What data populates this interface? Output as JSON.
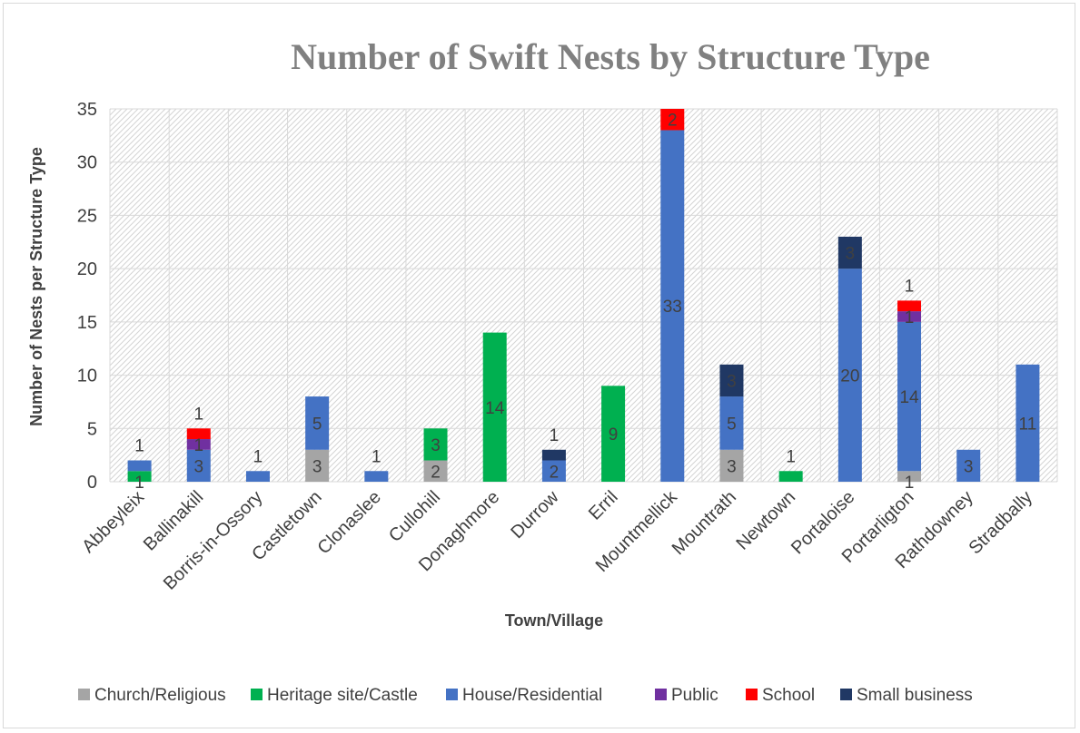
{
  "chart_data": {
    "type": "bar",
    "stacked": true,
    "title": "Number of Swift Nests by Structure Type",
    "xlabel": "Town/Village",
    "ylabel": "Number of Nests per Structure Type",
    "ylim": [
      0,
      35
    ],
    "yticks": [
      0,
      5,
      10,
      15,
      20,
      25,
      30,
      35
    ],
    "grid": true,
    "legend_position": "bottom",
    "categories": [
      "Abbeyleix",
      "Ballinakill",
      "Borris-in-Ossory",
      "Castletown",
      "Clonaslee",
      "Cullohill",
      "Donaghmore",
      "Durrow",
      "Erril",
      "Mountmellick",
      "Mountrath",
      "Newtown",
      "Portaloise",
      "Portarligton",
      "Rathdowney",
      "Stradbally"
    ],
    "series": [
      {
        "name": "Church/Religious",
        "color": "#a5a5a5",
        "values": [
          0,
          0,
          0,
          3,
          0,
          2,
          0,
          0,
          0,
          0,
          3,
          0,
          0,
          1,
          0,
          0
        ]
      },
      {
        "name": "Heritage site/Castle",
        "color": "#00b050",
        "values": [
          1,
          0,
          0,
          0,
          0,
          3,
          14,
          0,
          9,
          0,
          0,
          1,
          0,
          0,
          0,
          0
        ]
      },
      {
        "name": "House/Residential",
        "color": "#4472c4",
        "values": [
          1,
          3,
          1,
          5,
          1,
          0,
          0,
          2,
          0,
          33,
          5,
          0,
          20,
          14,
          3,
          11
        ]
      },
      {
        "name": "Public",
        "color": "#7030a0",
        "values": [
          0,
          1,
          0,
          0,
          0,
          0,
          0,
          0,
          0,
          0,
          0,
          0,
          0,
          1,
          0,
          0
        ]
      },
      {
        "name": "School",
        "color": "#ff0000",
        "values": [
          0,
          1,
          0,
          0,
          0,
          0,
          0,
          0,
          0,
          2,
          0,
          0,
          0,
          1,
          0,
          0
        ]
      },
      {
        "name": "Small business",
        "color": "#203864",
        "values": [
          0,
          0,
          0,
          0,
          0,
          0,
          0,
          1,
          0,
          0,
          3,
          0,
          3,
          0,
          0,
          0
        ]
      }
    ]
  }
}
